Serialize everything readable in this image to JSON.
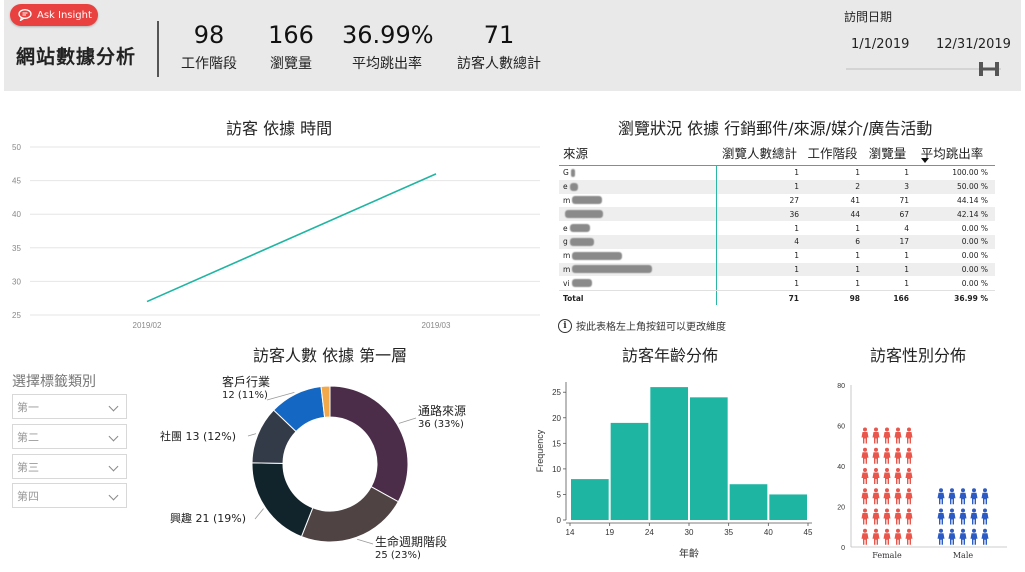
{
  "header": {
    "ask_label": "Ask Insight",
    "title": "網站數據分析",
    "kpis": [
      {
        "value": "98",
        "label": "工作階段"
      },
      {
        "value": "166",
        "label": "瀏覽量"
      },
      {
        "value": "36.99%",
        "label": "平均跳出率"
      },
      {
        "value": "71",
        "label": "訪客人數總計"
      }
    ],
    "date_filter": {
      "title": "訪問日期",
      "start": "1/1/2019",
      "end": "12/31/2019"
    }
  },
  "visits_chart": {
    "title": "訪客 依據 時間"
  },
  "table": {
    "title": "瀏覽狀況 依據  行銷郵件/來源/媒介/廣告活動",
    "columns": [
      "來源",
      "瀏覽人數總計",
      "工作階段",
      "瀏覽量",
      "平均跳出率"
    ],
    "rows": [
      {
        "prefix": "G",
        "c1": "1",
        "c2": "1",
        "c3": "1",
        "c4": "100.00 %"
      },
      {
        "prefix": "e",
        "c1": "1",
        "c2": "2",
        "c3": "3",
        "c4": "50.00 %"
      },
      {
        "prefix": "m",
        "c1": "27",
        "c2": "41",
        "c3": "71",
        "c4": "44.14 %"
      },
      {
        "prefix": "",
        "c1": "36",
        "c2": "44",
        "c3": "67",
        "c4": "42.14 %"
      },
      {
        "prefix": "e",
        "c1": "1",
        "c2": "1",
        "c3": "4",
        "c4": "0.00 %"
      },
      {
        "prefix": "g",
        "c1": "4",
        "c2": "6",
        "c3": "17",
        "c4": "0.00 %"
      },
      {
        "prefix": "m",
        "c1": "1",
        "c2": "1",
        "c3": "1",
        "c4": "0.00 %"
      },
      {
        "prefix": "m",
        "c1": "1",
        "c2": "1",
        "c3": "1",
        "c4": "0.00 %"
      },
      {
        "prefix": "vi",
        "c1": "1",
        "c2": "1",
        "c3": "1",
        "c4": "0.00 %"
      }
    ],
    "total": {
      "label": "Total",
      "c1": "71",
      "c2": "98",
      "c3": "166",
      "c4": "36.99 %"
    },
    "note": "按此表格左上角按鈕可以更改維度"
  },
  "slicers": {
    "title": "選擇標籤類別",
    "items": [
      "第一",
      "第二",
      "第三",
      "第四"
    ]
  },
  "donut_chart": {
    "title": "訪客人數 依據 第一層"
  },
  "hist_chart": {
    "title": "訪客年齡分佈"
  },
  "gender_chart": {
    "title": "訪客性別分佈"
  },
  "chart_data": [
    {
      "type": "line",
      "title": "訪客 依據 時間",
      "x": [
        "2019/02",
        "2019/03"
      ],
      "series": [
        {
          "values": [
            27,
            46
          ]
        }
      ],
      "ylim": [
        25,
        50
      ],
      "yticks": [
        25,
        30,
        35,
        40,
        45,
        50
      ],
      "color": "#1fb5a3",
      "grid": true
    },
    {
      "type": "pie",
      "title": "訪客人數 依據 第一層",
      "labels": [
        "通路來源",
        "生命週期階段",
        "興趣",
        "社團",
        "客戶行業",
        ""
      ],
      "values": [
        36,
        25,
        21,
        13,
        12,
        2
      ],
      "display": [
        "36 (33%)",
        "25 (23%)",
        "21 (19%)",
        "13 (12%)",
        "12 (11%)",
        ""
      ],
      "colors": [
        "#4b2d49",
        "#4f4344",
        "#12242b",
        "#333b48",
        "#1467c3",
        "#f3a84a"
      ]
    },
    {
      "type": "bar",
      "title": "訪客年齡分佈",
      "xlabel": "年齡",
      "ylabel": "Frequency",
      "bin_edges": [
        14,
        19,
        24,
        29,
        34,
        39,
        44
      ],
      "values": [
        8,
        19,
        26,
        24,
        7,
        5
      ],
      "xticks": [
        14,
        19,
        24,
        30,
        35,
        40,
        45
      ],
      "ylim": [
        0,
        27
      ],
      "yticks": [
        0,
        5,
        10,
        15,
        20,
        25
      ],
      "color": "#1fb5a3"
    },
    {
      "type": "bar",
      "title": "訪客性別分佈",
      "categories": [
        "Female",
        "Male"
      ],
      "values": [
        60,
        25
      ],
      "ylim": [
        0,
        80
      ],
      "yticks": [
        0,
        20,
        40,
        60,
        80
      ],
      "colors": [
        "#e9564c",
        "#2c5bc4"
      ]
    }
  ]
}
